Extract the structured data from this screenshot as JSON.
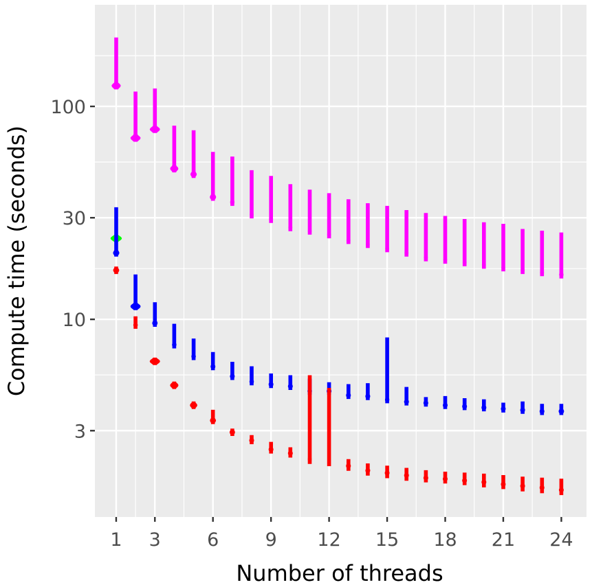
{
  "chart_data": {
    "type": "violin",
    "xlabel": "Number of threads",
    "ylabel": "Compute time (seconds)",
    "y_scale": "log10",
    "ylim": [
      1.18,
      300
    ],
    "xlim": [
      -0.1,
      25.3
    ],
    "x_ticks": [
      1,
      3,
      6,
      9,
      12,
      15,
      18,
      21,
      24
    ],
    "y_ticks": [
      3,
      10,
      30,
      100
    ],
    "y_minor_ticks": [
      5.48,
      17.3,
      54.8,
      173
    ],
    "y_tick_labels": [
      "3",
      "10",
      "30",
      "100"
    ],
    "colors": {
      "panel": "#ebebeb",
      "grid": "#ffffff",
      "tick_text": "#4d4d4d",
      "magenta": "#ff00ff",
      "blue": "#0000ff",
      "red": "#ff0000",
      "green": "#00ff00"
    },
    "series": [
      {
        "name": "magenta",
        "color": "#ff00ff",
        "points": [
          {
            "x": 1,
            "min": 125,
            "max": 210,
            "mode": 125,
            "width": 0.45
          },
          {
            "x": 2,
            "min": 71,
            "max": 117,
            "mode": 71,
            "width": 0.5
          },
          {
            "x": 3,
            "min": 78,
            "max": 121,
            "mode": 78,
            "width": 0.5
          },
          {
            "x": 4,
            "min": 51,
            "max": 81,
            "mode": 51,
            "width": 0.4
          },
          {
            "x": 5,
            "min": 48,
            "max": 77,
            "mode": 48,
            "width": 0.3
          },
          {
            "x": 6,
            "min": 37.5,
            "max": 61,
            "mode": 37.5,
            "width": 0.3
          },
          {
            "x": 7,
            "min": 35.5,
            "max": 58,
            "mode": 35.5,
            "width": 0.2
          },
          {
            "x": 8,
            "min": 31,
            "max": 50,
            "mode": 31,
            "width": 0.16
          },
          {
            "x": 9,
            "min": 29.5,
            "max": 47,
            "mode": 29.5,
            "width": 0.16
          },
          {
            "x": 10,
            "min": 27,
            "max": 43,
            "mode": 27,
            "width": 0.16
          },
          {
            "x": 11,
            "min": 26,
            "max": 40.5,
            "mode": 26,
            "width": 0.16
          },
          {
            "x": 12,
            "min": 25,
            "max": 39,
            "mode": 25,
            "width": 0.16
          },
          {
            "x": 13,
            "min": 23.5,
            "max": 36.5,
            "mode": 23.5,
            "width": 0.16
          },
          {
            "x": 14,
            "min": 22.5,
            "max": 35,
            "mode": 22.5,
            "width": 0.16
          },
          {
            "x": 15,
            "min": 21.5,
            "max": 34,
            "mode": 21.5,
            "width": 0.16
          },
          {
            "x": 16,
            "min": 20.5,
            "max": 32.5,
            "mode": 20.5,
            "width": 0.16
          },
          {
            "x": 17,
            "min": 19.5,
            "max": 31.5,
            "mode": 19.5,
            "width": 0.16
          },
          {
            "x": 18,
            "min": 19,
            "max": 30.5,
            "mode": 19,
            "width": 0.16
          },
          {
            "x": 19,
            "min": 18.5,
            "max": 29.5,
            "mode": 18.5,
            "width": 0.16
          },
          {
            "x": 20,
            "min": 18,
            "max": 28.5,
            "mode": 18,
            "width": 0.16
          },
          {
            "x": 21,
            "min": 17.5,
            "max": 28,
            "mode": 17.5,
            "width": 0.16
          },
          {
            "x": 22,
            "min": 17,
            "max": 26.5,
            "mode": 17,
            "width": 0.16
          },
          {
            "x": 23,
            "min": 16.6,
            "max": 26,
            "mode": 16.6,
            "width": 0.16
          },
          {
            "x": 24,
            "min": 16.2,
            "max": 25.5,
            "mode": 16.2,
            "width": 0.2
          }
        ]
      },
      {
        "name": "green",
        "color": "#00ff00",
        "points": [
          {
            "x": 1,
            "min": 23.5,
            "max": 24.5,
            "mode": 24,
            "width": 0.55
          }
        ]
      },
      {
        "name": "blue",
        "color": "#0000ff",
        "points": [
          {
            "x": 1,
            "min": 20.5,
            "max": 33.5,
            "mode": 20.5,
            "width": 0.3
          },
          {
            "x": 2,
            "min": 11.5,
            "max": 16.2,
            "mode": 11.5,
            "width": 0.5
          },
          {
            "x": 3,
            "min": 9.6,
            "max": 12.0,
            "mode": 9.6,
            "width": 0.25
          },
          {
            "x": 4,
            "min": 7.6,
            "max": 9.5,
            "mode": 7.6,
            "width": 0.2
          },
          {
            "x": 5,
            "min": 6.6,
            "max": 8.1,
            "mode": 6.7,
            "width": 0.2
          },
          {
            "x": 6,
            "min": 6.0,
            "max": 7.0,
            "mode": 6.0,
            "width": 0.22
          },
          {
            "x": 7,
            "min": 5.3,
            "max": 6.3,
            "mode": 5.4,
            "width": 0.22
          },
          {
            "x": 8,
            "min": 5.0,
            "max": 6.0,
            "mode": 5.1,
            "width": 0.2
          },
          {
            "x": 9,
            "min": 4.85,
            "max": 5.55,
            "mode": 4.95,
            "width": 0.22
          },
          {
            "x": 10,
            "min": 4.75,
            "max": 5.45,
            "mode": 4.85,
            "width": 0.22
          },
          {
            "x": 11,
            "min": 4.5,
            "max": 5.25,
            "mode": 4.6,
            "width": 0.2
          },
          {
            "x": 12,
            "min": 4.45,
            "max": 5.05,
            "mode": 4.6,
            "width": 0.22
          },
          {
            "x": 13,
            "min": 4.25,
            "max": 4.95,
            "mode": 4.4,
            "width": 0.22
          },
          {
            "x": 14,
            "min": 4.2,
            "max": 5.0,
            "mode": 4.35,
            "width": 0.22
          },
          {
            "x": 15,
            "min": 4.1,
            "max": 8.2,
            "mode": 4.2,
            "width": 0.2
          },
          {
            "x": 16,
            "min": 4.0,
            "max": 4.8,
            "mode": 4.1,
            "width": 0.22
          },
          {
            "x": 17,
            "min": 3.95,
            "max": 4.3,
            "mode": 4.05,
            "width": 0.22
          },
          {
            "x": 18,
            "min": 3.85,
            "max": 4.35,
            "mode": 3.95,
            "width": 0.22
          },
          {
            "x": 19,
            "min": 3.8,
            "max": 4.25,
            "mode": 3.9,
            "width": 0.22
          },
          {
            "x": 20,
            "min": 3.75,
            "max": 4.2,
            "mode": 3.85,
            "width": 0.22
          },
          {
            "x": 21,
            "min": 3.7,
            "max": 4.05,
            "mode": 3.8,
            "width": 0.22
          },
          {
            "x": 22,
            "min": 3.65,
            "max": 4.1,
            "mode": 3.75,
            "width": 0.22
          },
          {
            "x": 23,
            "min": 3.6,
            "max": 4.0,
            "mode": 3.7,
            "width": 0.22
          },
          {
            "x": 24,
            "min": 3.6,
            "max": 4.0,
            "mode": 3.7,
            "width": 0.25
          }
        ]
      },
      {
        "name": "red",
        "color": "#ff0000",
        "points": [
          {
            "x": 1,
            "min": 16.5,
            "max": 17.5,
            "mode": 17,
            "width": 0.28
          },
          {
            "x": 2,
            "min": 9.2,
            "max": 10.3,
            "mode": 9.4,
            "width": 0.2
          },
          {
            "x": 3,
            "min": 6.2,
            "max": 6.5,
            "mode": 6.35,
            "width": 0.5
          },
          {
            "x": 4,
            "min": 4.8,
            "max": 5.0,
            "mode": 4.9,
            "width": 0.4
          },
          {
            "x": 5,
            "min": 3.85,
            "max": 4.1,
            "mode": 3.95,
            "width": 0.35
          },
          {
            "x": 6,
            "min": 3.25,
            "max": 3.75,
            "mode": 3.35,
            "width": 0.28
          },
          {
            "x": 7,
            "min": 2.85,
            "max": 3.05,
            "mode": 2.95,
            "width": 0.25
          },
          {
            "x": 8,
            "min": 2.6,
            "max": 2.85,
            "mode": 2.7,
            "width": 0.22
          },
          {
            "x": 9,
            "min": 2.35,
            "max": 2.65,
            "mode": 2.45,
            "width": 0.22
          },
          {
            "x": 10,
            "min": 2.25,
            "max": 2.5,
            "mode": 2.35,
            "width": 0.22
          },
          {
            "x": 11,
            "min": 2.1,
            "max": 5.45,
            "mode": 2.2,
            "width": 0.16
          },
          {
            "x": 12,
            "min": 2.05,
            "max": 4.75,
            "mode": 2.15,
            "width": 0.16
          },
          {
            "x": 13,
            "min": 1.95,
            "max": 2.2,
            "mode": 2.05,
            "width": 0.22
          },
          {
            "x": 14,
            "min": 1.85,
            "max": 2.1,
            "mode": 1.95,
            "width": 0.22
          },
          {
            "x": 15,
            "min": 1.8,
            "max": 2.05,
            "mode": 1.9,
            "width": 0.22
          },
          {
            "x": 16,
            "min": 1.75,
            "max": 2.0,
            "mode": 1.85,
            "width": 0.22
          },
          {
            "x": 17,
            "min": 1.72,
            "max": 1.95,
            "mode": 1.8,
            "width": 0.22
          },
          {
            "x": 18,
            "min": 1.7,
            "max": 1.92,
            "mode": 1.78,
            "width": 0.22
          },
          {
            "x": 19,
            "min": 1.67,
            "max": 1.9,
            "mode": 1.75,
            "width": 0.22
          },
          {
            "x": 20,
            "min": 1.63,
            "max": 1.88,
            "mode": 1.72,
            "width": 0.22
          },
          {
            "x": 21,
            "min": 1.6,
            "max": 1.85,
            "mode": 1.68,
            "width": 0.22
          },
          {
            "x": 22,
            "min": 1.56,
            "max": 1.82,
            "mode": 1.65,
            "width": 0.22
          },
          {
            "x": 23,
            "min": 1.53,
            "max": 1.8,
            "mode": 1.62,
            "width": 0.22
          },
          {
            "x": 24,
            "min": 1.5,
            "max": 1.78,
            "mode": 1.58,
            "width": 0.22
          }
        ]
      }
    ]
  }
}
